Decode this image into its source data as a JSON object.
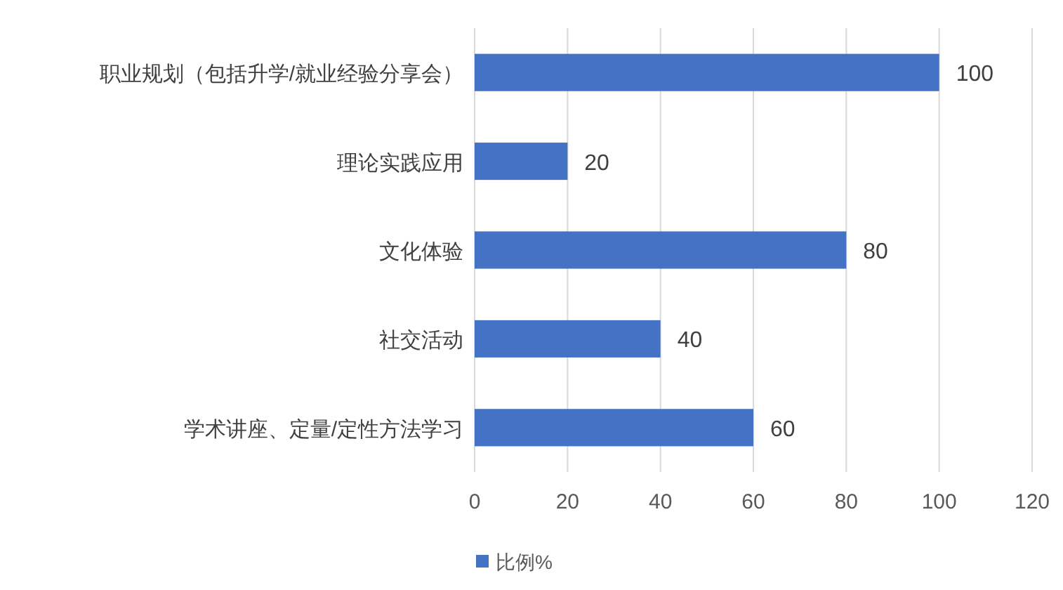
{
  "chart_data": {
    "type": "bar",
    "orientation": "horizontal",
    "categories": [
      "职业规划（包括升学/就业经验分享会）",
      "理论实践应用",
      "文化体验",
      "社交活动",
      "学术讲座、定量/定性方法学习"
    ],
    "series": [
      {
        "name": "比例%",
        "color": "#4472c4",
        "values": [
          100,
          20,
          80,
          40,
          60
        ]
      }
    ],
    "xlim": [
      0,
      120
    ],
    "xticks": [
      0,
      20,
      40,
      60,
      80,
      100,
      120
    ],
    "grid": "x",
    "legend": "bottom",
    "data_labels": true
  }
}
